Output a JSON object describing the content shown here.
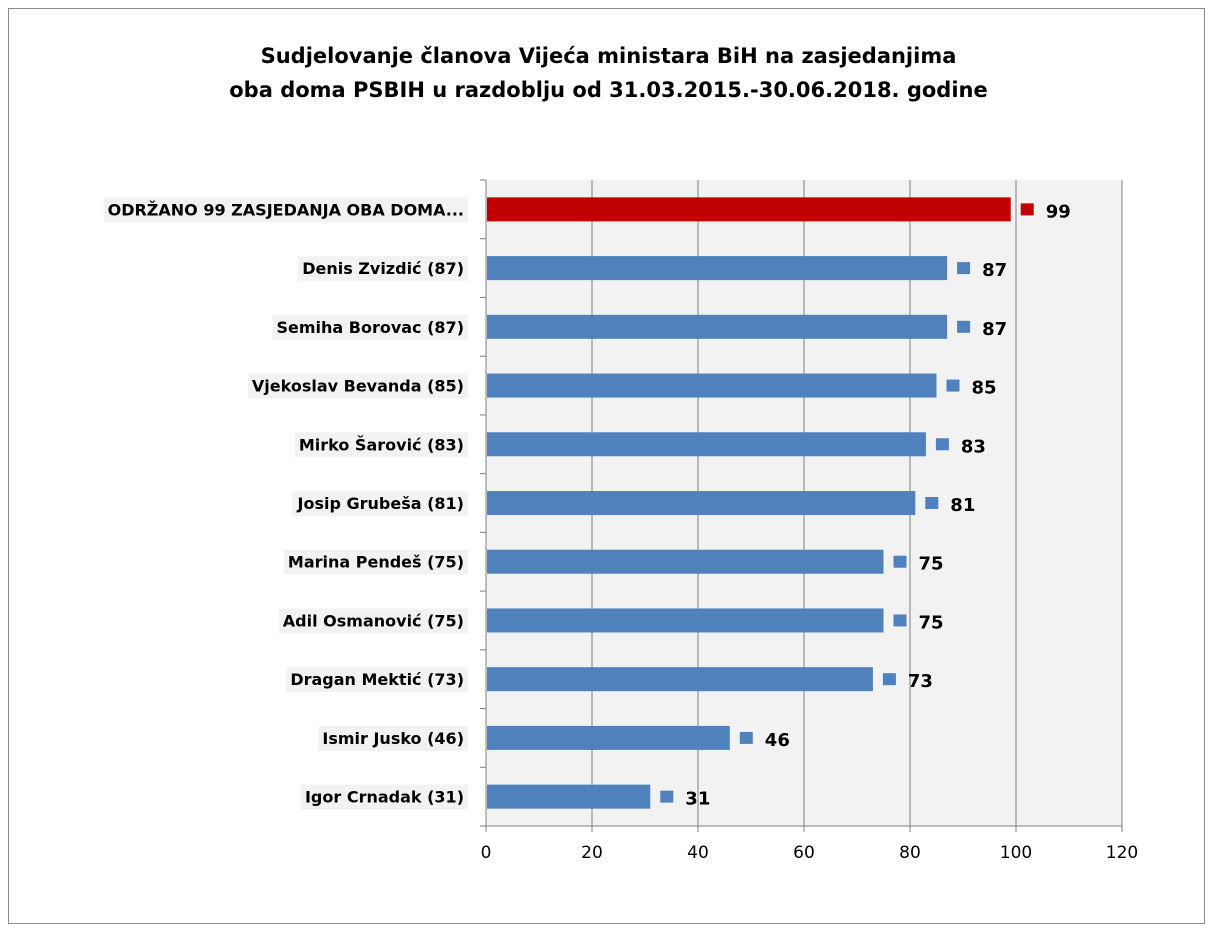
{
  "chart_data": {
    "type": "bar",
    "orientation": "horizontal",
    "title_lines": [
      "Sudjelovanje članova Vijeća ministara BiH na zasjedanjima",
      "oba doma PSBIH u razdoblju od 31.03.2015.-30.06.2018. godine"
    ],
    "categories": [
      "ODRŽANO 99 ZASJEDANJA OBA DOMA...",
      "Denis Zvizdić (87)",
      "Semiha Borovac (87)",
      "Vjekoslav Bevanda (85)",
      "Mirko Šarović (83)",
      "Josip Grubeša (81)",
      "Marina Pendeš (75)",
      "Adil Osmanović (75)",
      "Dragan Mektić (73)",
      "Ismir Jusko (46)",
      "Igor Crnadak (31)"
    ],
    "values": [
      99,
      87,
      87,
      85,
      83,
      81,
      75,
      75,
      73,
      46,
      31
    ],
    "value_labels": [
      "99",
      "87",
      "87",
      "85",
      "83",
      "81",
      "75",
      "75",
      "73",
      "46",
      "31"
    ],
    "xlim": [
      0,
      120
    ],
    "x_ticks": [
      "0",
      "20",
      "40",
      "60",
      "80",
      "100",
      "120"
    ],
    "grid": true,
    "highlight_index": 0,
    "colors": {
      "highlight": "#c00000",
      "bar": "#4f81bd",
      "plot_background": "#f2f2f2",
      "gridline": "#7f7f7f",
      "label_background": "#f2f2f2"
    }
  }
}
